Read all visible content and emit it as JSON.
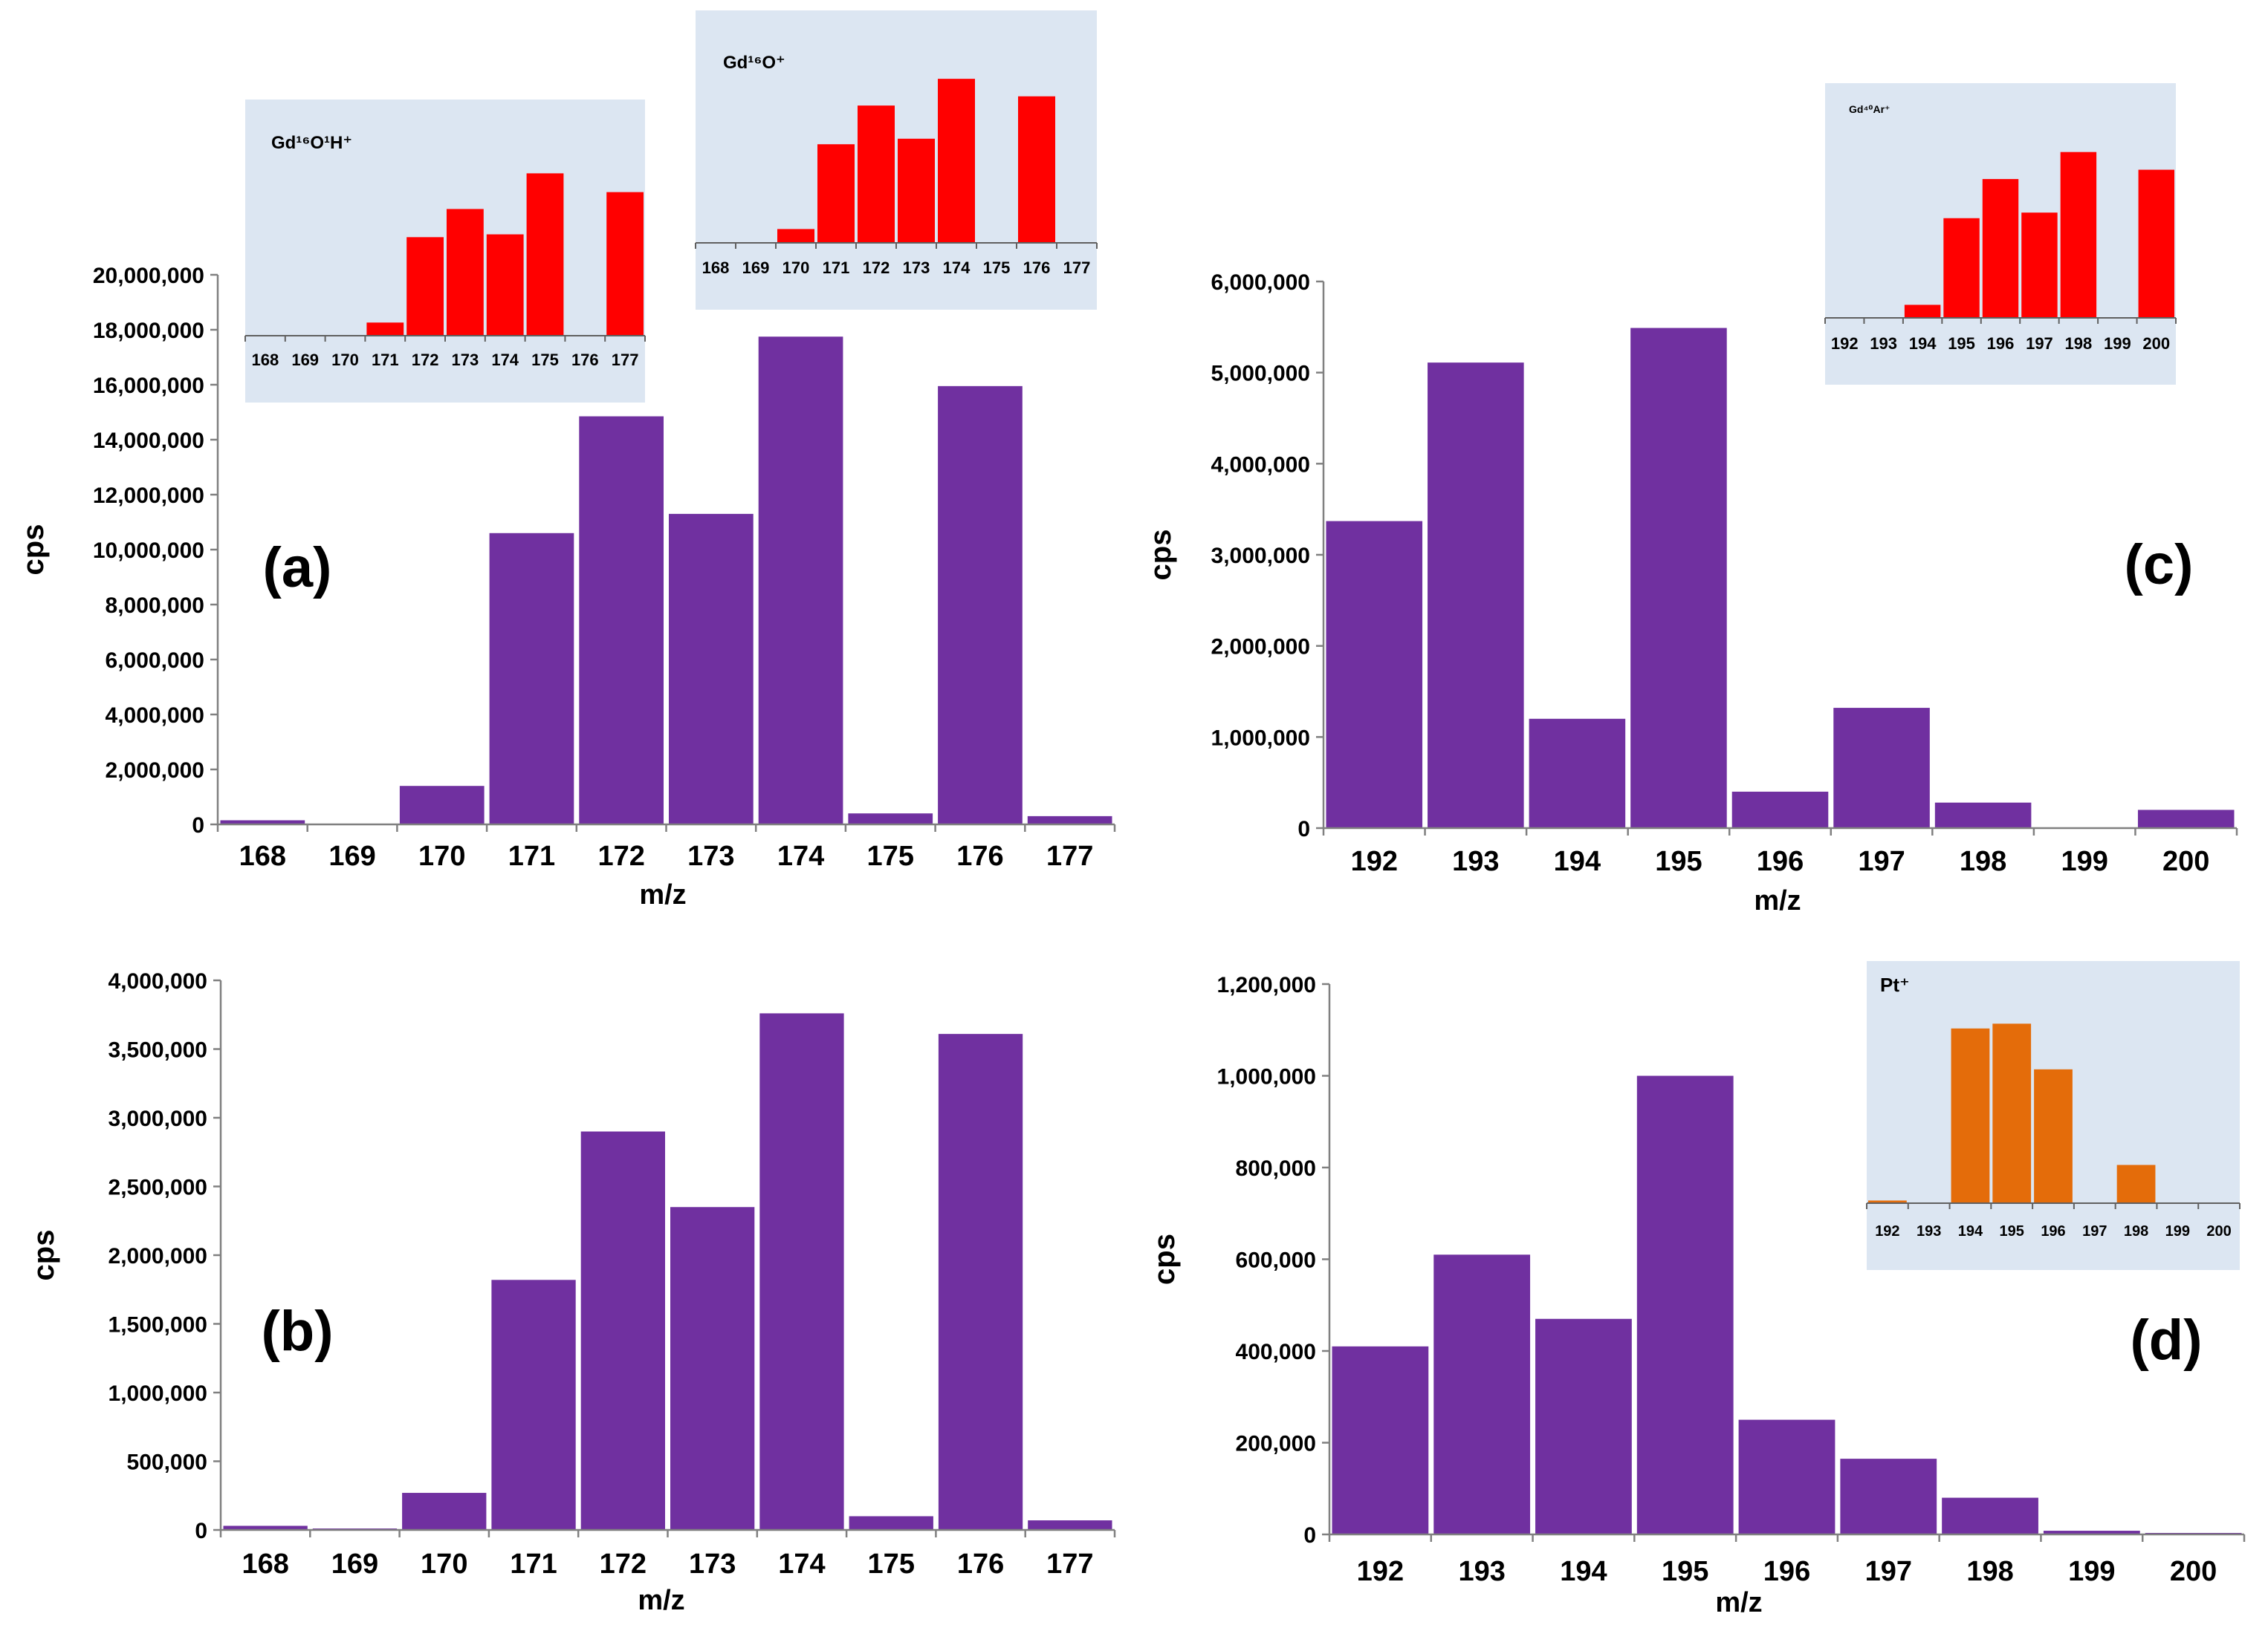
{
  "colors": {
    "main_bar": "#7030A0",
    "inset_red": "#FF0000",
    "inset_orange": "#E46C0A",
    "inset_bg": "#DCE6F2"
  },
  "chart_data": [
    {
      "id": "a",
      "type": "bar",
      "panel_label": "(a)",
      "categories": [
        "168",
        "169",
        "170",
        "171",
        "172",
        "173",
        "174",
        "175",
        "176",
        "177"
      ],
      "values": [
        150000,
        0,
        1400000,
        10600000,
        14850000,
        11300000,
        17750000,
        400000,
        15950000,
        300000
      ],
      "ylim": [
        0,
        20000000
      ],
      "yticks": [
        "0",
        "2,000,000",
        "4,000,000",
        "6,000,000",
        "8,000,000",
        "10,000,000",
        "12,000,000",
        "14,000,000",
        "16,000,000",
        "18,000,000",
        "20,000,000"
      ],
      "xlabel": "m/z",
      "ylabel": "cps"
    },
    {
      "id": "b",
      "type": "bar",
      "panel_label": "(b)",
      "categories": [
        "168",
        "169",
        "170",
        "171",
        "172",
        "173",
        "174",
        "175",
        "176",
        "177"
      ],
      "values": [
        30000,
        5000,
        270000,
        1820000,
        2900000,
        2350000,
        3760000,
        100000,
        3610000,
        70000
      ],
      "ylim": [
        0,
        4000000
      ],
      "yticks": [
        "0",
        "500,000",
        "1,000,000",
        "1,500,000",
        "2,000,000",
        "2,500,000",
        "3,000,000",
        "3,500,000",
        "4,000,000"
      ],
      "xlabel": "m/z",
      "ylabel": "cps"
    },
    {
      "id": "c",
      "type": "bar",
      "panel_label": "(c)",
      "categories": [
        "192",
        "193",
        "194",
        "195",
        "196",
        "197",
        "198",
        "199",
        "200"
      ],
      "values": [
        3370000,
        5110000,
        1200000,
        5490000,
        400000,
        1320000,
        280000,
        0,
        200000
      ],
      "ylim": [
        0,
        6000000
      ],
      "yticks": [
        "0",
        "1,000,000",
        "2,000,000",
        "3,000,000",
        "4,000,000",
        "5,000,000",
        "6,000,000"
      ],
      "xlabel": "m/z",
      "ylabel": "cps"
    },
    {
      "id": "d",
      "type": "bar",
      "panel_label": "(d)",
      "categories": [
        "192",
        "193",
        "194",
        "195",
        "196",
        "197",
        "198",
        "199",
        "200"
      ],
      "values": [
        410000,
        610000,
        470000,
        1000000,
        250000,
        165000,
        80000,
        8000,
        3000
      ],
      "ylim": [
        0,
        1200000
      ],
      "yticks": [
        "0",
        "200,000",
        "400,000",
        "600,000",
        "800,000",
        "1,000,000",
        "1,200,000"
      ],
      "xlabel": "m/z",
      "ylabel": "cps"
    },
    {
      "id": "inset-a",
      "type": "bar",
      "title": "Gd¹⁶O¹H⁺",
      "categories": [
        "168",
        "169",
        "170",
        "171",
        "172",
        "173",
        "174",
        "175",
        "176",
        "177"
      ],
      "values": [
        0,
        0,
        0,
        1.4,
        10.5,
        13.5,
        10.8,
        17.3,
        0,
        15.3
      ],
      "ylim": [
        0,
        22
      ]
    },
    {
      "id": "inset-b",
      "type": "bar",
      "title": "Gd¹⁶O⁺",
      "categories": [
        "168",
        "169",
        "170",
        "171",
        "172",
        "173",
        "174",
        "175",
        "176",
        "177"
      ],
      "values": [
        0,
        0,
        1.5,
        10.7,
        14.9,
        11.3,
        17.8,
        0,
        15.9,
        0
      ],
      "ylim": [
        0,
        22
      ]
    },
    {
      "id": "inset-c",
      "type": "bar",
      "title": "Gd⁴⁰Ar⁺",
      "categories": [
        "192",
        "193",
        "194",
        "195",
        "196",
        "197",
        "198",
        "199",
        "200"
      ],
      "values": [
        0,
        0,
        1.4,
        10.7,
        14.9,
        11.3,
        17.8,
        0,
        15.9
      ],
      "ylim": [
        0,
        22
      ]
    },
    {
      "id": "inset-d",
      "type": "bar",
      "title": "Pt⁺",
      "categories": [
        "192",
        "193",
        "194",
        "195",
        "196",
        "197",
        "198",
        "199",
        "200"
      ],
      "values": [
        0.5,
        0,
        32.9,
        33.8,
        25.2,
        0,
        7.2,
        0,
        0
      ],
      "ylim": [
        0,
        40
      ]
    }
  ]
}
